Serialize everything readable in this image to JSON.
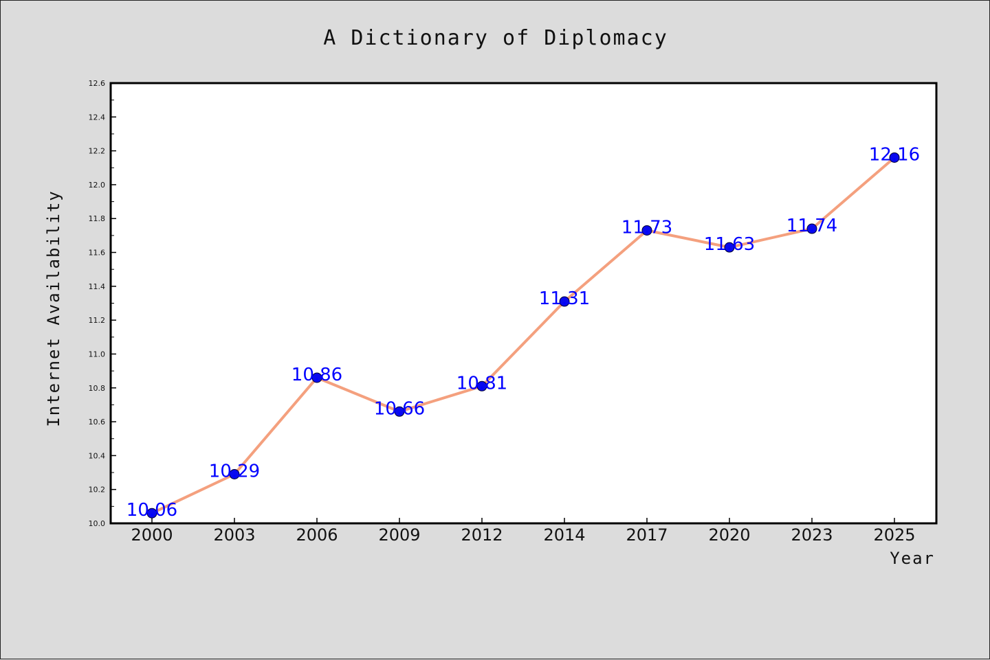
{
  "chart_data": {
    "type": "line",
    "title": "A Dictionary of Diplomacy",
    "xlabel": "Year",
    "ylabel": "Internet Availability",
    "categories": [
      "2000",
      "2003",
      "2006",
      "2009",
      "2012",
      "2014",
      "2017",
      "2020",
      "2023",
      "2025"
    ],
    "series": [
      {
        "values": [
          10.06,
          10.29,
          10.86,
          10.66,
          10.81,
          11.31,
          11.73,
          11.63,
          11.74,
          12.16
        ],
        "labels": [
          "10.06",
          "10.29",
          "10.86",
          "10.66",
          "10.81",
          "11.31",
          "11.73",
          "11.63",
          "11.74",
          "12.16"
        ]
      }
    ],
    "ylim": [
      10.0,
      12.6
    ],
    "yticks": [
      "10.0",
      "10.2",
      "10.4",
      "10.6",
      "10.8",
      "11.0",
      "11.2",
      "11.4",
      "11.6",
      "11.8",
      "12.0",
      "12.2",
      "12.4",
      "12.6"
    ],
    "grid": false,
    "legend": "none",
    "colors": {
      "line": "#f4a07e",
      "marker": "#0a0aee",
      "label": "#0000ff",
      "background": "#dcdcdc",
      "plot_background": "#ffffff"
    }
  }
}
